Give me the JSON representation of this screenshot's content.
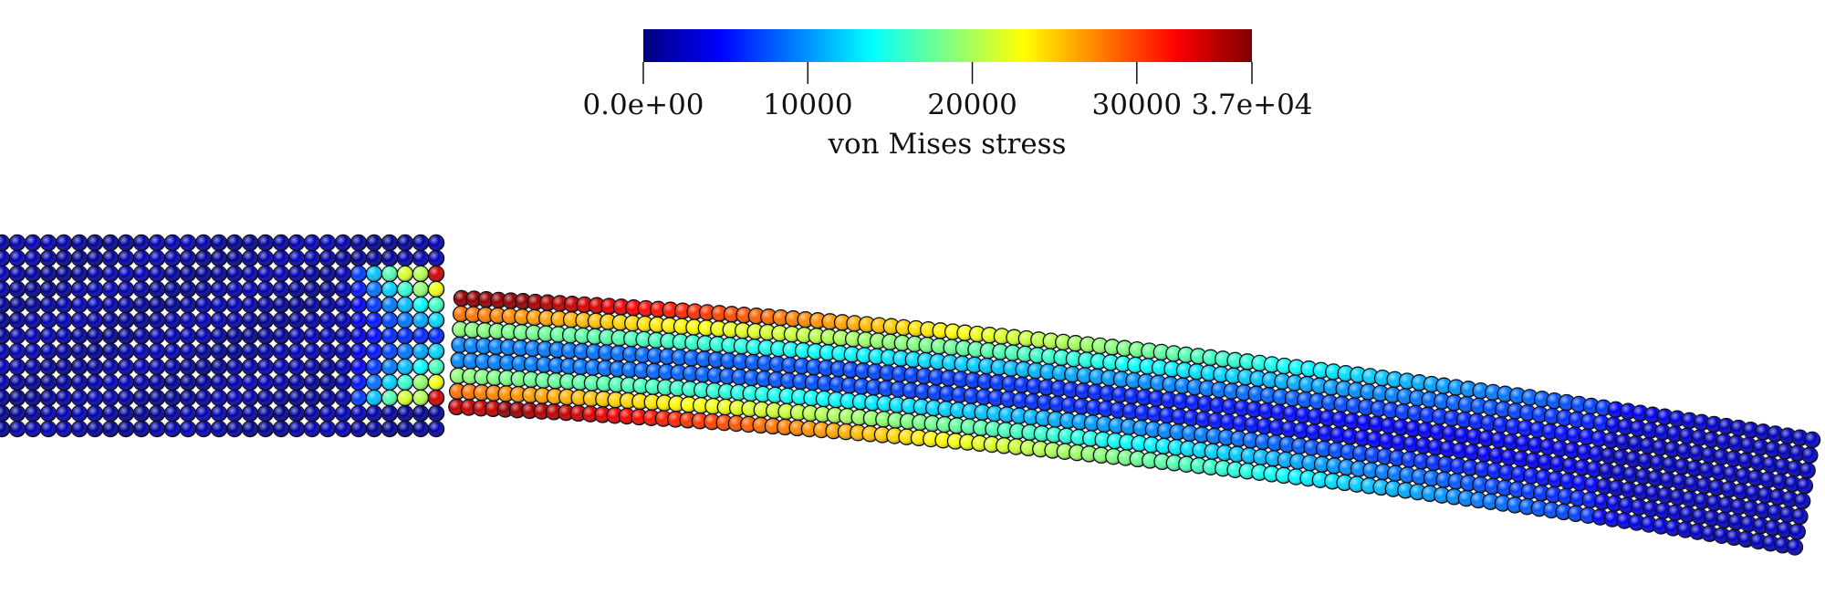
{
  "colorbar": {
    "title": "von Mises stress",
    "range": [
      0,
      37000
    ],
    "ticks": [
      {
        "value": 0,
        "label": "0.0e+00"
      },
      {
        "value": 10000,
        "label": "10000"
      },
      {
        "value": 20000,
        "label": "20000"
      },
      {
        "value": 30000,
        "label": "30000"
      },
      {
        "value": 37000,
        "label": "3.7e+04"
      }
    ],
    "colormap": [
      "#00007f",
      "#0000ff",
      "#007fff",
      "#00ffff",
      "#7fff7f",
      "#ffff00",
      "#ff7f00",
      "#ff0000",
      "#7f0000"
    ]
  },
  "scene": {
    "description_hidden": "",
    "fixed_block_stress_level": "low",
    "beam_stress_pattern": "bending: high at top/bottom fibers near clamp, low along neutral axis and toward free tip"
  }
}
